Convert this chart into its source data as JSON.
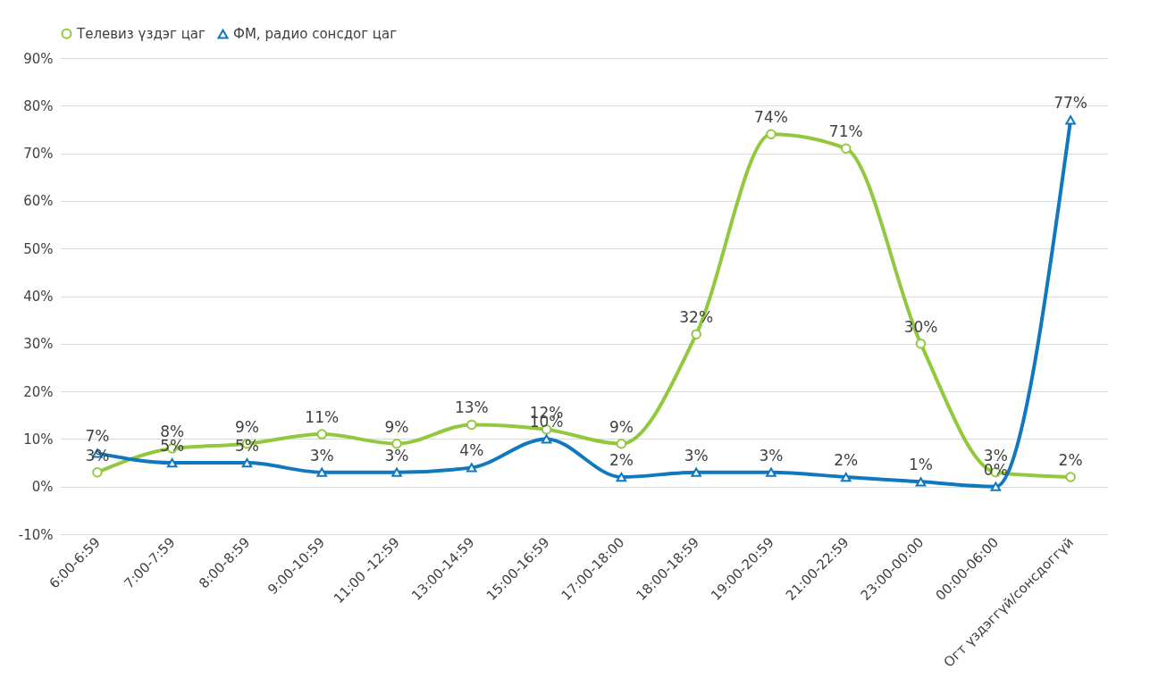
{
  "chart_data": {
    "type": "line",
    "categories": [
      "6:00-6:59",
      "7:00-7:59",
      "8:00-8:59",
      "9:00-10:59",
      "11:00 -12:59",
      "13:00-14:59",
      "15:00-16:59",
      "17:00-18:00",
      "18:00-18:59",
      "19:00-20:59",
      "21:00-22:59",
      "23:00-00:00",
      "00:00-06:00",
      "Огт үздэггүй/сонсдоггүй"
    ],
    "series": [
      {
        "name": "Телевиз үздэг цаг",
        "color": "#92c83e",
        "marker": "circle",
        "values": [
          3,
          8,
          9,
          11,
          9,
          13,
          12,
          9,
          32,
          74,
          71,
          30,
          3,
          2
        ],
        "value_labels": [
          "3%",
          "8%",
          "9%",
          "11%",
          "9%",
          "13%",
          "12%",
          "9%",
          "32%",
          "74%",
          "71%",
          "30%",
          "3%",
          "2%"
        ]
      },
      {
        "name": "ФМ, радио сонсдог цаг",
        "color": "#0f78be",
        "marker": "triangle",
        "values": [
          7,
          5,
          5,
          3,
          3,
          4,
          10,
          2,
          3,
          3,
          2,
          1,
          0,
          77
        ],
        "value_labels": [
          "7%",
          "5%",
          "5%",
          "3%",
          "3%",
          "4%",
          "10%",
          "2%",
          "3%",
          "3%",
          "2%",
          "1%",
          "0%",
          "77%"
        ]
      }
    ],
    "ylim": [
      -10,
      90
    ],
    "yticks": [
      {
        "value": -10,
        "label": "-10%"
      },
      {
        "value": 0,
        "label": "0%"
      },
      {
        "value": 10,
        "label": "10%"
      },
      {
        "value": 20,
        "label": "20%"
      },
      {
        "value": 30,
        "label": "30%"
      },
      {
        "value": 40,
        "label": "40%"
      },
      {
        "value": 50,
        "label": "50%"
      },
      {
        "value": 60,
        "label": "60%"
      },
      {
        "value": 70,
        "label": "70%"
      },
      {
        "value": 80,
        "label": "80%"
      },
      {
        "value": 90,
        "label": "90%"
      }
    ],
    "grid": "y",
    "legend": "top",
    "line_style": "solid"
  }
}
